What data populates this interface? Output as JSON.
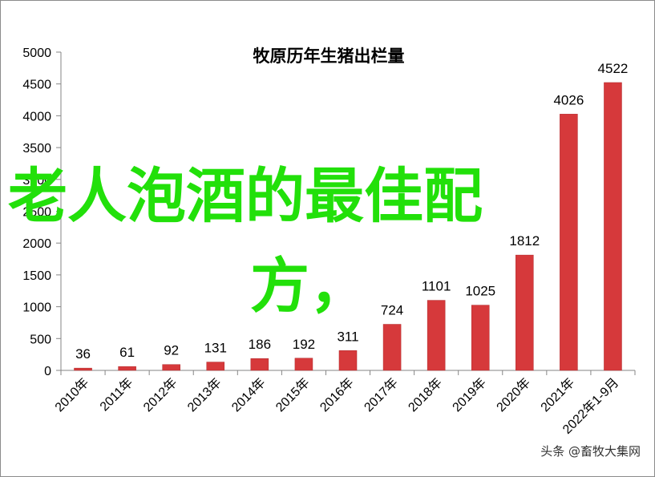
{
  "chart_data": {
    "type": "bar",
    "title": "牧原历年生猪出栏量",
    "categories": [
      "2010年",
      "2011年",
      "2012年",
      "2013年",
      "2014年",
      "2015年",
      "2016年",
      "2017年",
      "2018年",
      "2019年",
      "2020年",
      "2021年",
      "2022年1-9月"
    ],
    "values": [
      36,
      61,
      92,
      131,
      186,
      192,
      311,
      724,
      1101,
      1025,
      1812,
      4026,
      4522
    ],
    "data_labels": [
      "36",
      "61",
      "92",
      "131",
      "186",
      "192",
      "311",
      "724",
      "1101",
      "1025",
      "1812",
      "4026",
      "4522"
    ],
    "ylim": [
      0,
      5000
    ],
    "yticks": [
      0,
      500,
      1000,
      1500,
      2000,
      2500,
      3000,
      3500,
      4000,
      4500,
      5000
    ],
    "ytick_labels": [
      "0",
      "500",
      "1000",
      "1500",
      "2000",
      "2500",
      "3000",
      "3500",
      "4000",
      "4500",
      "5000"
    ],
    "bar_color": "#d6393b",
    "grid": false,
    "legend": "none"
  },
  "overlay": {
    "line1": "老人泡酒的最佳配",
    "line2": "方，",
    "color": "#22e00a"
  },
  "watermark": "头条 @畜牧大集网"
}
